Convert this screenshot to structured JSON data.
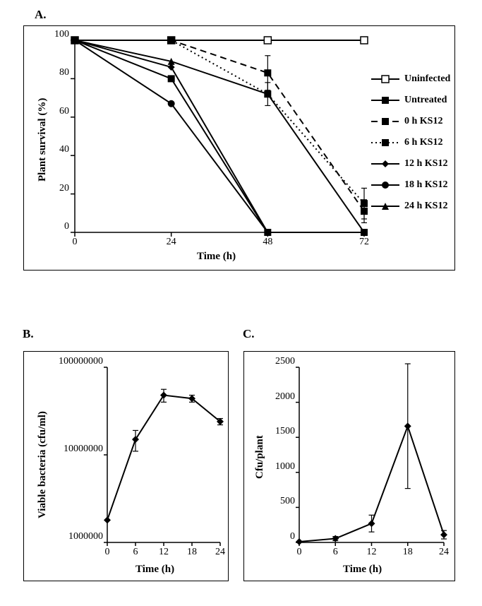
{
  "panelA": {
    "label": "A.",
    "type": "line",
    "xlabel": "Time (h)",
    "ylabel": "Plant survival (%)",
    "xlim": [
      0,
      72
    ],
    "ylim": [
      0,
      100
    ],
    "xticks": [
      0,
      24,
      48,
      72
    ],
    "yticks": [
      0,
      20,
      40,
      60,
      80,
      100
    ],
    "axis_fontsize": 15,
    "tick_fontsize": 14,
    "line_color": "#000000",
    "line_width": 2,
    "series": [
      {
        "name": "Uninfected",
        "marker": "open-square",
        "dash": "solid",
        "x": [
          0,
          24,
          48,
          72
        ],
        "y": [
          100,
          100,
          100,
          100
        ]
      },
      {
        "name": "Untreated",
        "marker": "filled-square",
        "dash": "solid",
        "x": [
          0,
          24,
          48,
          72
        ],
        "y": [
          100,
          80,
          0,
          0
        ]
      },
      {
        "name": "0 h KS12",
        "marker": "filled-square",
        "dash": "dashed",
        "x": [
          0,
          24,
          48,
          72
        ],
        "y": [
          100,
          100,
          83,
          11
        ],
        "err": [
          0,
          0,
          9,
          6
        ]
      },
      {
        "name": "6 h KS12",
        "marker": "filled-square",
        "dash": "dotted",
        "x": [
          0,
          24,
          48,
          72
        ],
        "y": [
          100,
          100,
          72,
          15
        ],
        "err": [
          0,
          0,
          6,
          8
        ]
      },
      {
        "name": "12 h KS12",
        "marker": "filled-diamond",
        "dash": "solid",
        "x": [
          0,
          24,
          48,
          72
        ],
        "y": [
          100,
          86,
          0,
          0
        ]
      },
      {
        "name": "18 h KS12",
        "marker": "filled-circle",
        "dash": "solid",
        "x": [
          0,
          24,
          48,
          72
        ],
        "y": [
          100,
          67,
          0,
          0
        ]
      },
      {
        "name": "24 h KS12",
        "marker": "filled-triangle",
        "dash": "solid",
        "x": [
          0,
          24,
          48,
          72
        ],
        "y": [
          100,
          89,
          72,
          0
        ]
      }
    ],
    "legend_labels": [
      "Uninfected",
      "Untreated",
      "0 h KS12",
      "6 h KS12",
      "12 h KS12",
      "18 h KS12",
      "24 h KS12"
    ]
  },
  "panelB": {
    "label": "B.",
    "type": "line-log",
    "xlabel": "Time (h)",
    "ylabel": "Viable bacteria (cfu/ml)",
    "xlim": [
      0,
      24
    ],
    "xticks": [
      0,
      6,
      12,
      18,
      24
    ],
    "ylim_log": [
      6,
      8
    ],
    "yticks": [
      1000000,
      10000000,
      100000000
    ],
    "ytick_labels": [
      "1000000",
      "10000000",
      "100000000"
    ],
    "line_color": "#000000",
    "line_width": 2,
    "marker": "filled-diamond",
    "x": [
      0,
      6,
      12,
      18,
      24
    ],
    "y": [
      1800000,
      15000000,
      48000000,
      44000000,
      24000000
    ],
    "err": [
      0,
      4000000,
      8000000,
      4000000,
      2000000
    ]
  },
  "panelC": {
    "label": "C.",
    "type": "line",
    "xlabel": "Time (h)",
    "ylabel": "Cfu/plant",
    "xlim": [
      0,
      24
    ],
    "xticks": [
      0,
      6,
      12,
      18,
      24
    ],
    "ylim": [
      0,
      2500
    ],
    "yticks": [
      0,
      500,
      1000,
      1500,
      2000,
      2500
    ],
    "line_color": "#000000",
    "line_width": 2,
    "marker": "filled-diamond",
    "x": [
      0,
      6,
      12,
      18,
      24
    ],
    "y": [
      10,
      55,
      270,
      1660,
      110
    ],
    "err": [
      0,
      30,
      120,
      890,
      60
    ]
  }
}
